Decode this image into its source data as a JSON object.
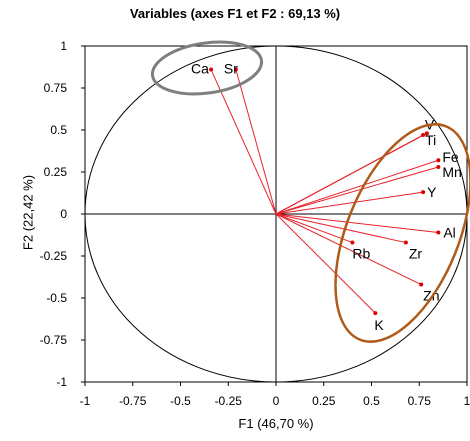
{
  "chart_data": {
    "type": "scatter",
    "title": "Variables (axes F1 et F2 : 69,13 %)",
    "xlabel": "F1 (46,70 %)",
    "ylabel": "F2 (22,42 %)",
    "xlim": [
      -1,
      1
    ],
    "ylim": [
      -1,
      1
    ],
    "x_ticks": [
      "-1",
      "-0.75",
      "-0.5",
      "-0.25",
      "0",
      "0.25",
      "0.5",
      "0.75",
      "1"
    ],
    "y_ticks": [
      "1",
      "0.75",
      "0.5",
      "0.25",
      "0",
      "-0.25",
      "-0.5",
      "-0.75",
      "-1"
    ],
    "grid": false,
    "points": [
      {
        "label": "Ca",
        "x": -0.34,
        "y": 0.86
      },
      {
        "label": "Sr",
        "x": -0.21,
        "y": 0.86
      },
      {
        "label": "V",
        "x": 0.79,
        "y": 0.48
      },
      {
        "label": "Ti",
        "x": 0.77,
        "y": 0.47
      },
      {
        "label": "Fe",
        "x": 0.85,
        "y": 0.32
      },
      {
        "label": "Mn",
        "x": 0.85,
        "y": 0.28
      },
      {
        "label": "Y",
        "x": 0.77,
        "y": 0.13
      },
      {
        "label": "Al",
        "x": 0.85,
        "y": -0.11
      },
      {
        "label": "Rb",
        "x": 0.4,
        "y": -0.17
      },
      {
        "label": "Zr",
        "x": 0.68,
        "y": -0.17
      },
      {
        "label": "Zn",
        "x": 0.76,
        "y": -0.42
      },
      {
        "label": "K",
        "x": 0.52,
        "y": -0.59
      }
    ],
    "vector_color": "#e8232b",
    "point_color": "#e00000",
    "circle_color": "#000000",
    "groups": [
      {
        "members": [
          "Ca",
          "Sr"
        ],
        "color": "#7f7f7f"
      },
      {
        "members": [
          "V",
          "Ti",
          "Fe",
          "Mn",
          "Y",
          "Al",
          "Rb",
          "Zr",
          "Zn",
          "K"
        ],
        "color": "#b05a1a"
      }
    ]
  }
}
